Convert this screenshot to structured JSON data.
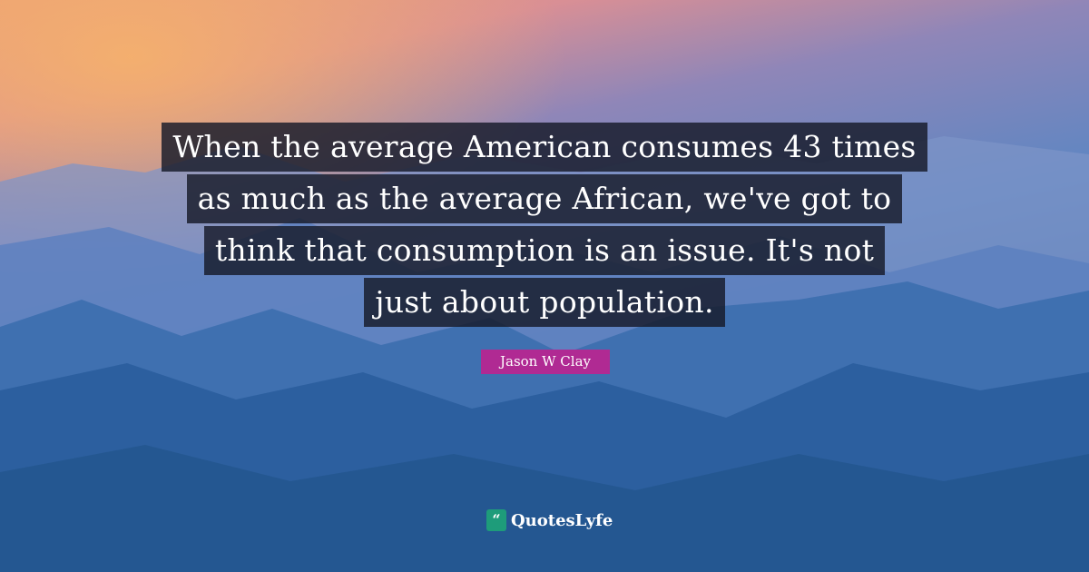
{
  "quote": {
    "lines": [
      "When the average American consumes 43 times",
      "as much as the average African, we've got to",
      "think that consumption is an issue. It's not",
      "just about population."
    ]
  },
  "author": "Jason W Clay",
  "brand": {
    "name": "QuotesLyfe",
    "icon": "quote-marks-icon",
    "icon_glyph": "“"
  },
  "colors": {
    "author_badge": "#b02a93",
    "logo": "#1e9c7a",
    "text_box": "#161a28"
  }
}
